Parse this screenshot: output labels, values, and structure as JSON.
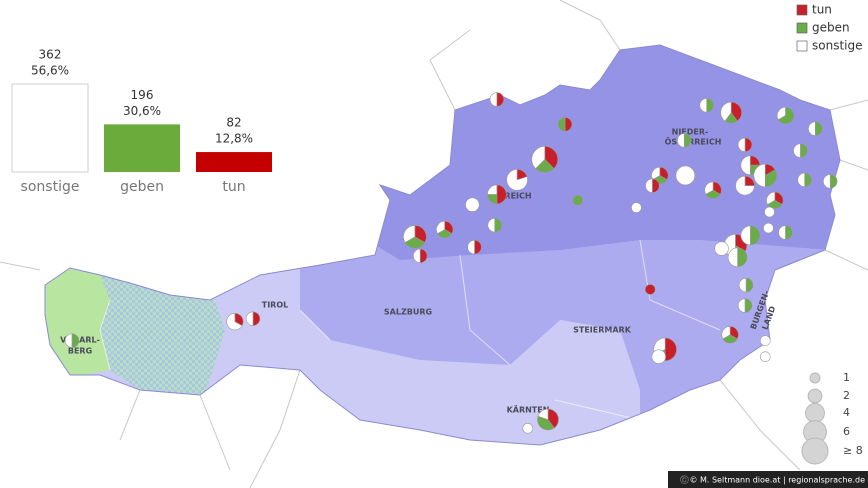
{
  "chart_data": {
    "type": "bar",
    "categories": [
      "sonstige",
      "geben",
      "tun"
    ],
    "values": [
      362,
      196,
      82
    ],
    "percent": [
      56.6,
      30.6,
      12.8
    ],
    "percent_labels": [
      "56,6%",
      "30,6%",
      "12,8%"
    ],
    "colors": [
      "#ffffff",
      "#6aab3c",
      "#c40000"
    ]
  },
  "legend": {
    "items": [
      {
        "name": "tun",
        "color": "#c8202a"
      },
      {
        "name": "geben",
        "color": "#6aab4a"
      },
      {
        "name": "sonstige",
        "color": "#ffffff"
      }
    ]
  },
  "size_legend": {
    "values": [
      1,
      2,
      4,
      6,
      {
        "value": 8,
        "label": "≥ 8"
      }
    ]
  },
  "regions": {
    "tirol": "TIROL",
    "salzburg": "SALZBURG",
    "steiermark": "STEIERMARK",
    "kaernten": "KÄRNTEN",
    "niederoesterreich": [
      "NIEDER-",
      "ÖSTERREICH"
    ],
    "oberoesterreich": "REICH",
    "vorarlberg": [
      "VORARL-",
      "BERG"
    ],
    "burgenland": [
      "BURGEN-",
      "LAND"
    ]
  },
  "pies": [
    {
      "lon": 13.79,
      "lat": 48.73,
      "counts": [
        1,
        0,
        1
      ]
    },
    {
      "lon": 14.43,
      "lat": 48.56,
      "counts": [
        1,
        1,
        0
      ]
    },
    {
      "lon": 14.24,
      "lat": 48.32,
      "counts": [
        3,
        2,
        3
      ]
    },
    {
      "lon": 13.98,
      "lat": 48.18,
      "counts": [
        1,
        0,
        4
      ]
    },
    {
      "lon": 13.79,
      "lat": 48.08,
      "counts": [
        2,
        1,
        1
      ]
    },
    {
      "lon": 13.56,
      "lat": 48.01,
      "counts": [
        0,
        0,
        2
      ]
    },
    {
      "lon": 13.3,
      "lat": 47.84,
      "counts": [
        1,
        1,
        1
      ]
    },
    {
      "lon": 13.02,
      "lat": 47.79,
      "counts": [
        2,
        2,
        2
      ]
    },
    {
      "lon": 13.07,
      "lat": 47.66,
      "counts": [
        1,
        0,
        1
      ]
    },
    {
      "lon": 13.58,
      "lat": 47.72,
      "counts": [
        1,
        0,
        1
      ]
    },
    {
      "lon": 13.77,
      "lat": 47.87,
      "counts": [
        0,
        1,
        1
      ]
    },
    {
      "lon": 14.55,
      "lat": 48.04,
      "counts": [
        0,
        1,
        0
      ]
    },
    {
      "lon": 15.1,
      "lat": 47.99,
      "counts": [
        0,
        0,
        1
      ]
    },
    {
      "lon": 15.32,
      "lat": 48.21,
      "counts": [
        1,
        1,
        1
      ]
    },
    {
      "lon": 15.25,
      "lat": 48.14,
      "counts": [
        1,
        0,
        1
      ]
    },
    {
      "lon": 15.56,
      "lat": 48.21,
      "counts": [
        0,
        0,
        4
      ]
    },
    {
      "lon": 15.76,
      "lat": 48.69,
      "counts": [
        0,
        1,
        1
      ]
    },
    {
      "lon": 15.99,
      "lat": 48.64,
      "counts": [
        2,
        1,
        2
      ]
    },
    {
      "lon": 16.5,
      "lat": 48.62,
      "counts": [
        0,
        2,
        1
      ]
    },
    {
      "lon": 15.55,
      "lat": 48.45,
      "counts": [
        0,
        1,
        1
      ]
    },
    {
      "lon": 15.82,
      "lat": 48.11,
      "counts": [
        1,
        1,
        1
      ]
    },
    {
      "lon": 16.12,
      "lat": 48.42,
      "counts": [
        1,
        0,
        1
      ]
    },
    {
      "lon": 16.17,
      "lat": 48.28,
      "counts": [
        1,
        1,
        2
      ]
    },
    {
      "lon": 16.31,
      "lat": 48.21,
      "counts": [
        1,
        2,
        3
      ]
    },
    {
      "lon": 16.12,
      "lat": 48.14,
      "counts": [
        1,
        0,
        3
      ]
    },
    {
      "lon": 16.64,
      "lat": 48.38,
      "counts": [
        0,
        1,
        1
      ]
    },
    {
      "lon": 16.78,
      "lat": 48.53,
      "counts": [
        0,
        1,
        1
      ]
    },
    {
      "lon": 16.4,
      "lat": 48.04,
      "counts": [
        1,
        1,
        1
      ]
    },
    {
      "lon": 16.35,
      "lat": 47.96,
      "counts": [
        0,
        0,
        1
      ]
    },
    {
      "lon": 16.68,
      "lat": 48.18,
      "counts": [
        0,
        1,
        1
      ]
    },
    {
      "lon": 16.92,
      "lat": 48.17,
      "counts": [
        0,
        1,
        1
      ]
    },
    {
      "lon": 16.34,
      "lat": 47.85,
      "counts": [
        0,
        0,
        1
      ]
    },
    {
      "lon": 16.5,
      "lat": 47.82,
      "counts": [
        0,
        1,
        1
      ]
    },
    {
      "lon": 16.03,
      "lat": 47.73,
      "counts": [
        2,
        1,
        3
      ]
    },
    {
      "lon": 16.17,
      "lat": 47.8,
      "counts": [
        0,
        2,
        2
      ]
    },
    {
      "lon": 16.05,
      "lat": 47.65,
      "counts": [
        0,
        2,
        2
      ]
    },
    {
      "lon": 15.9,
      "lat": 47.71,
      "counts": [
        0,
        0,
        2
      ]
    },
    {
      "lon": 16.13,
      "lat": 47.46,
      "counts": [
        0,
        1,
        1
      ]
    },
    {
      "lon": 16.12,
      "lat": 47.32,
      "counts": [
        0,
        1,
        1
      ]
    },
    {
      "lon": 15.98,
      "lat": 47.12,
      "counts": [
        1,
        1,
        1
      ]
    },
    {
      "lon": 16.31,
      "lat": 47.08,
      "counts": [
        0,
        0,
        1
      ]
    },
    {
      "lon": 16.31,
      "lat": 46.97,
      "counts": [
        0,
        0,
        1
      ]
    },
    {
      "lon": 15.37,
      "lat": 47.02,
      "counts": [
        3,
        1,
        2
      ]
    },
    {
      "lon": 15.31,
      "lat": 46.97,
      "counts": [
        0,
        0,
        2
      ]
    },
    {
      "lon": 15.23,
      "lat": 47.43,
      "counts": [
        1,
        0,
        0
      ]
    },
    {
      "lon": 14.27,
      "lat": 46.54,
      "counts": [
        2,
        2,
        1
      ]
    },
    {
      "lon": 14.08,
      "lat": 46.48,
      "counts": [
        0,
        0,
        1
      ]
    },
    {
      "lon": 11.33,
      "lat": 47.21,
      "counts": [
        1,
        0,
        2
      ]
    },
    {
      "lon": 11.5,
      "lat": 47.23,
      "counts": [
        1,
        0,
        1
      ]
    },
    {
      "lon": 9.8,
      "lat": 47.08,
      "counts": [
        0,
        1,
        1
      ]
    }
  ],
  "credit": "©️© M. Seltmann   dioe.at | regionalsprache.de"
}
